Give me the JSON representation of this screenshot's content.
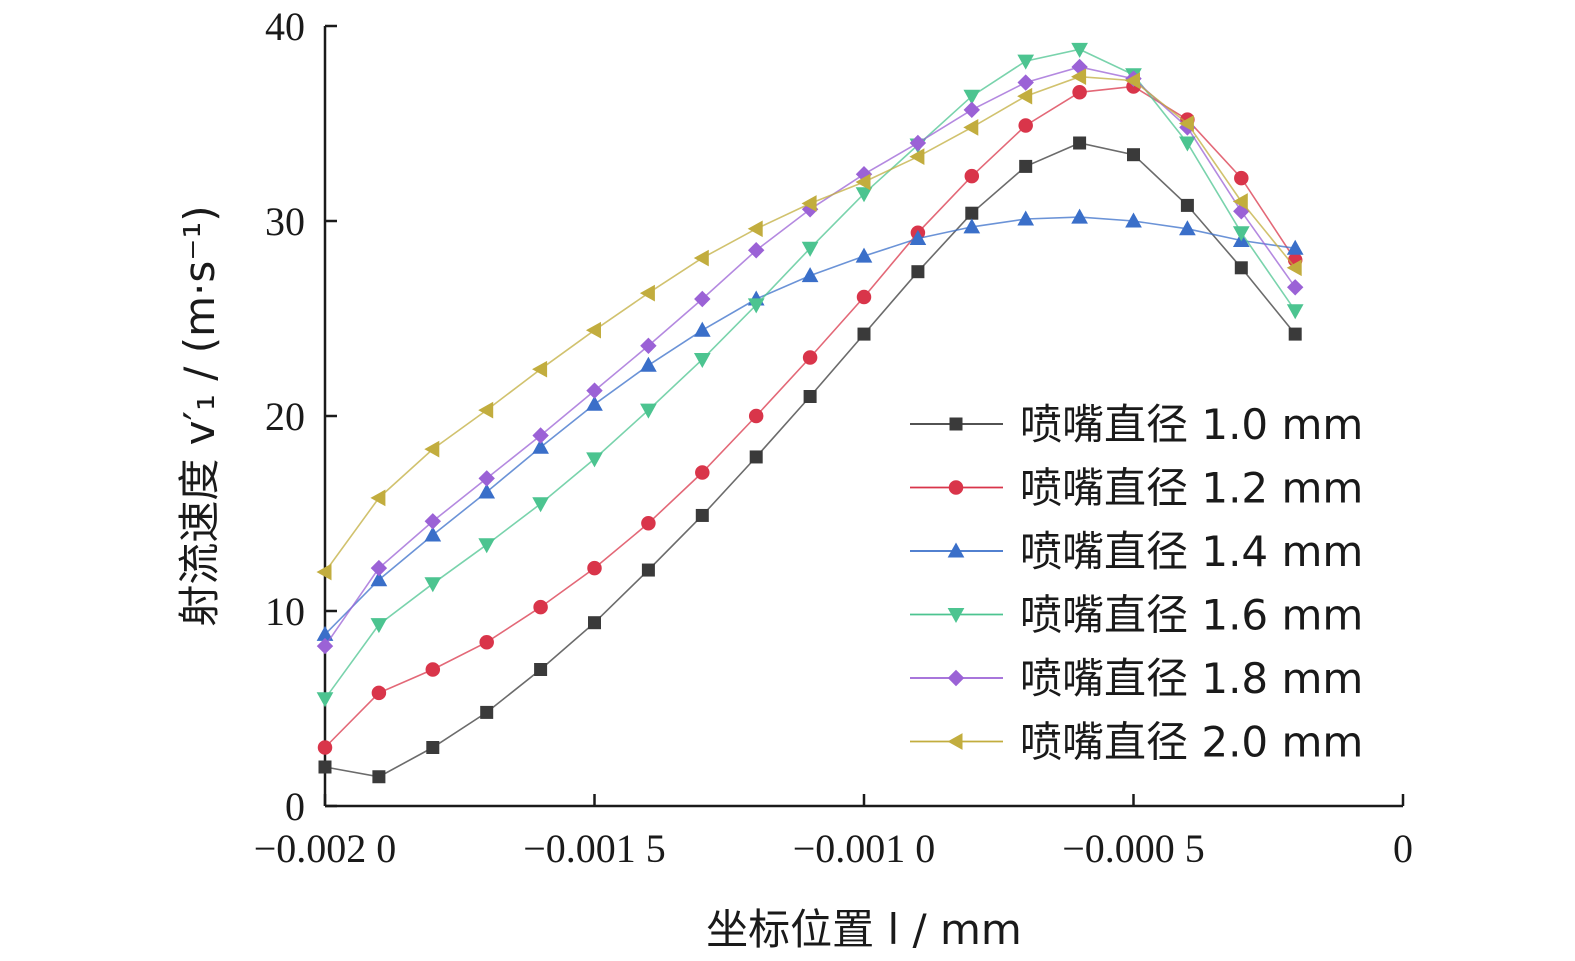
{
  "chart_data": {
    "type": "line",
    "xlabel": "坐标位置 l / mm",
    "ylabel": "射流速度 v′₁ / (m·s⁻¹)",
    "xlim": [
      -0.002,
      0
    ],
    "ylim": [
      0,
      40
    ],
    "x_ticks": [
      -0.002,
      -0.0015,
      -0.001,
      -0.0005,
      0
    ],
    "x_tick_labels": [
      "−0.002 0",
      "−0.001 5",
      "−0.001 0",
      "−0.000 5",
      "0"
    ],
    "y_ticks": [
      0,
      10,
      20,
      30,
      40
    ],
    "y_tick_labels": [
      "0",
      "10",
      "20",
      "30",
      "40"
    ],
    "grid": false,
    "legend_position": "lower-right",
    "x": [
      -0.002,
      -0.0019,
      -0.0018,
      -0.0017,
      -0.0016,
      -0.0015,
      -0.0014,
      -0.0013,
      -0.0012,
      -0.0011,
      -0.001,
      -0.0009,
      -0.0008,
      -0.0007,
      -0.0006,
      -0.0005,
      -0.0004,
      -0.0003,
      -0.0002
    ],
    "series": [
      {
        "name": "喷嘴直径 1.0 mm",
        "color": "#3a3a3a",
        "marker": "square",
        "values": [
          2.0,
          1.5,
          3.0,
          4.8,
          7.0,
          9.4,
          12.1,
          14.9,
          17.9,
          21.0,
          24.2,
          27.4,
          30.4,
          32.8,
          34.0,
          33.4,
          30.8,
          27.6,
          24.2
        ]
      },
      {
        "name": "喷嘴直径 1.2 mm",
        "color": "#d9354a",
        "marker": "circle",
        "values": [
          3.0,
          5.8,
          7.0,
          8.4,
          10.2,
          12.2,
          14.5,
          17.1,
          20.0,
          23.0,
          26.1,
          29.4,
          32.3,
          34.9,
          36.6,
          36.9,
          35.2,
          32.2,
          28.0
        ]
      },
      {
        "name": "喷嘴直径 1.4 mm",
        "color": "#3a6fc9",
        "marker": "triangle-up",
        "values": [
          8.8,
          11.6,
          13.9,
          16.1,
          18.4,
          20.6,
          22.6,
          24.4,
          26.0,
          27.2,
          28.2,
          29.1,
          29.7,
          30.1,
          30.2,
          30.0,
          29.6,
          29.0,
          28.6
        ]
      },
      {
        "name": "喷嘴直径 1.6 mm",
        "color": "#4cc490",
        "marker": "triangle-down",
        "values": [
          5.5,
          9.3,
          11.4,
          13.4,
          15.5,
          17.8,
          20.3,
          22.9,
          25.7,
          28.6,
          31.4,
          33.9,
          36.4,
          38.2,
          38.8,
          37.5,
          34.0,
          29.4,
          25.4
        ]
      },
      {
        "name": "喷嘴直径 1.8 mm",
        "color": "#9b62d6",
        "marker": "diamond",
        "values": [
          8.2,
          12.2,
          14.6,
          16.8,
          19.0,
          21.3,
          23.6,
          26.0,
          28.5,
          30.6,
          32.4,
          34.0,
          35.7,
          37.1,
          37.9,
          37.3,
          34.8,
          30.5,
          26.6
        ]
      },
      {
        "name": "喷嘴直径 2.0 mm",
        "color": "#c2ad3e",
        "marker": "triangle-left",
        "values": [
          12.0,
          15.8,
          18.3,
          20.3,
          22.4,
          24.4,
          26.3,
          28.1,
          29.6,
          30.9,
          32.0,
          33.3,
          34.8,
          36.4,
          37.4,
          37.2,
          35.0,
          31.0,
          27.6
        ]
      }
    ]
  }
}
